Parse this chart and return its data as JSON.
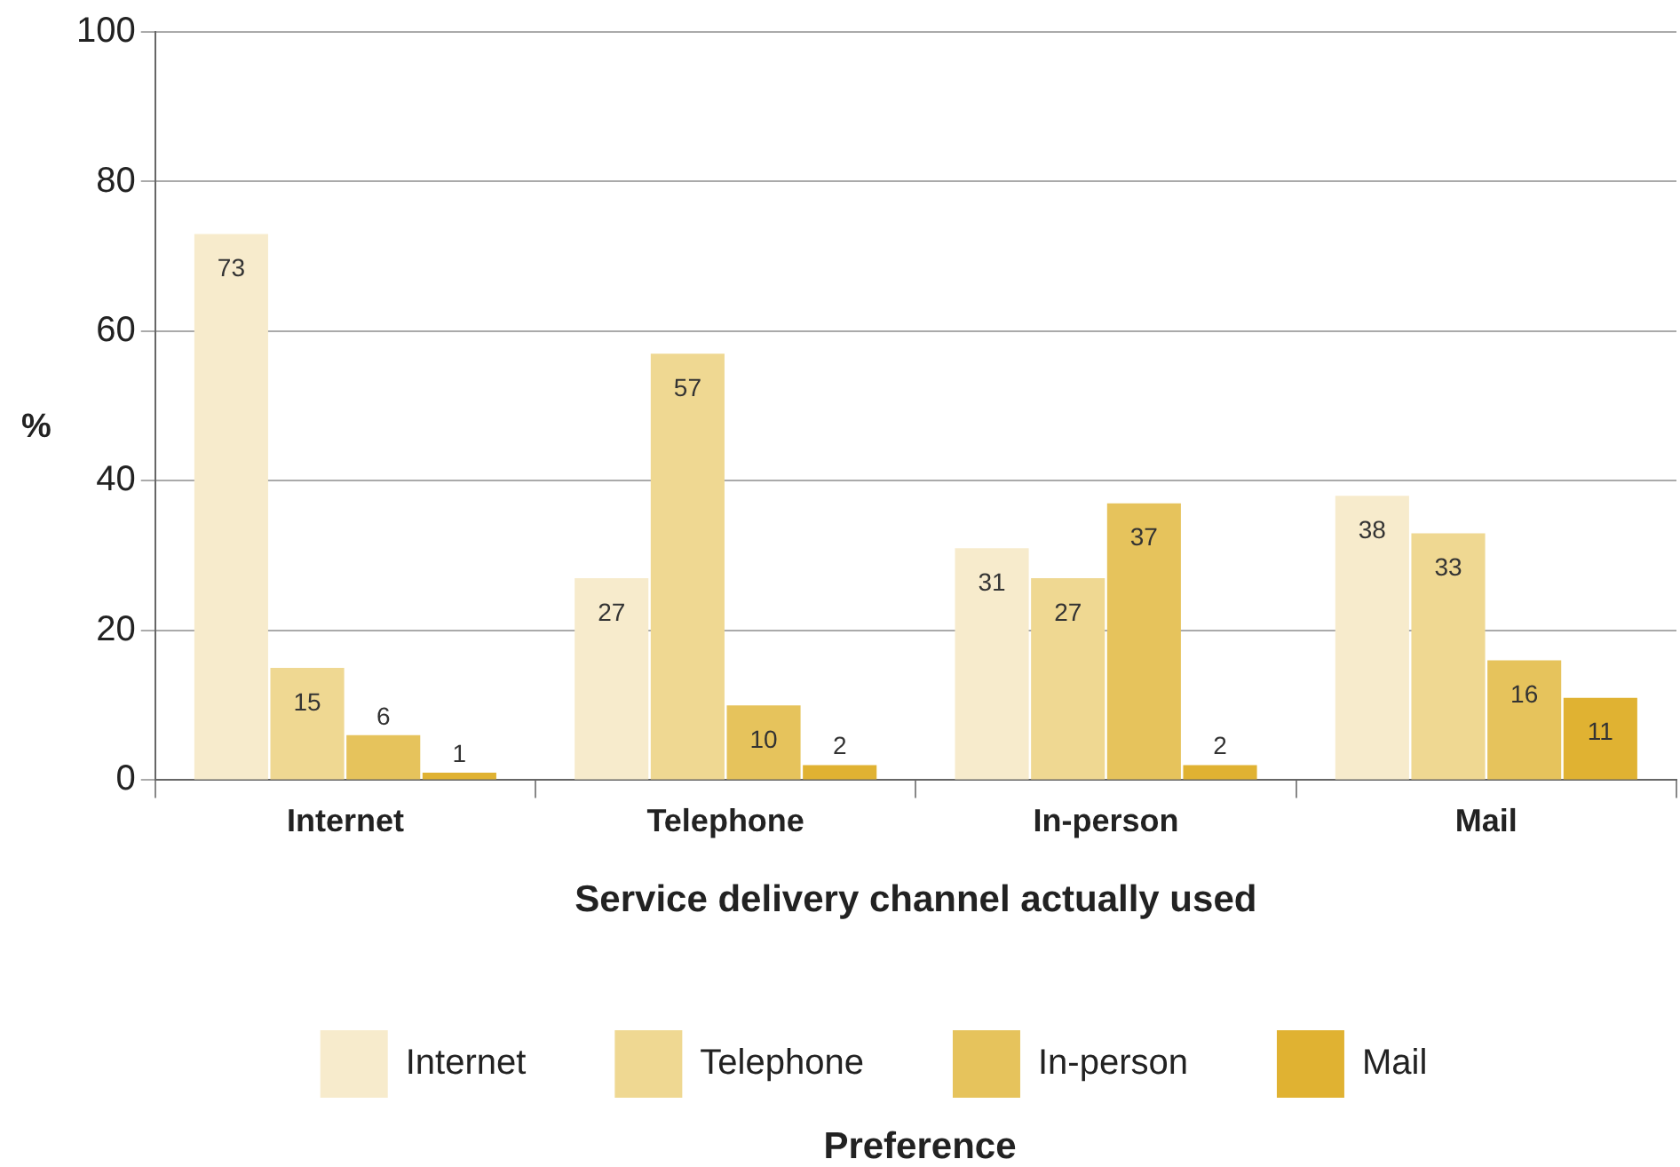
{
  "chart_data": {
    "type": "bar",
    "xlabel": "Service delivery channel actually used",
    "ylabel": "%",
    "legend_title": "Preference",
    "categories": [
      "Internet",
      "Telephone",
      "In-person",
      "Mail"
    ],
    "series": [
      {
        "name": "Internet",
        "color": "#f7ebcc",
        "values": [
          73,
          27,
          31,
          38
        ]
      },
      {
        "name": "Telephone",
        "color": "#efd892",
        "values": [
          15,
          57,
          27,
          33
        ]
      },
      {
        "name": "In-person",
        "color": "#e6c35c",
        "values": [
          6,
          10,
          37,
          16
        ]
      },
      {
        "name": "Mail",
        "color": "#e0b232",
        "values": [
          1,
          2,
          2,
          11
        ]
      }
    ],
    "ylim": [
      0,
      100
    ],
    "yticks": [
      0,
      20,
      40,
      60,
      80,
      100
    ],
    "grid": "y",
    "legend": "bottom",
    "data_labels": true
  }
}
